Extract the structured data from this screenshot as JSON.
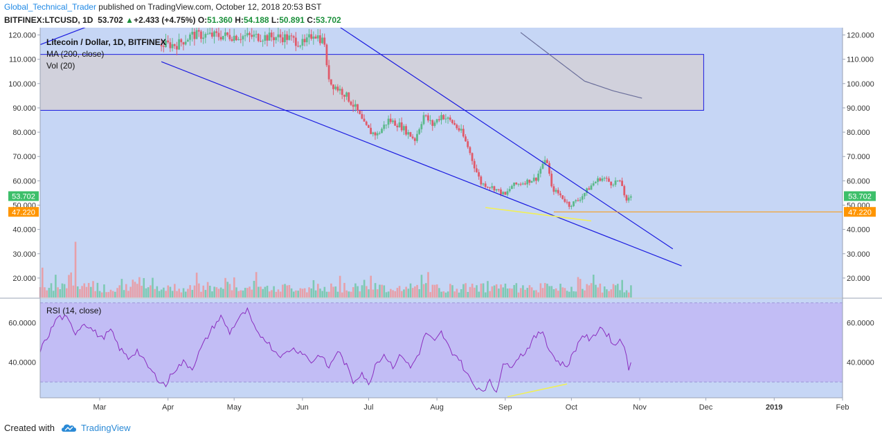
{
  "header": {
    "author": "Global_Technical_Trader",
    "published": " published on TradingView.com, October 12, 2018 20:53 BST",
    "symbol": "BITFINEX:LTCUSD, 1D",
    "last": "53.702",
    "change": "+2.433 (+4.75%)",
    "o_label": "O:",
    "o": "51.360",
    "h_label": "H:",
    "h": "54.188",
    "l_label": "L:",
    "l": "50.891",
    "c_label": "C:",
    "c": "53.702"
  },
  "legend": {
    "title": "Litecoin / Dollar, 1D, BITFINEX",
    "ma": "MA (200, close)",
    "vol": "Vol (20)",
    "rsi": "RSI (14, close)"
  },
  "badges": {
    "price": "53.702",
    "level": "47.220"
  },
  "footer": {
    "created_with": "Created with",
    "brand": "TradingView"
  },
  "colors": {
    "background": "#c6d6f5",
    "zone_fill": "#d1d1dc",
    "up": "#5bb98a",
    "down": "#e05a6a",
    "trendline": "#1a1ae0",
    "ma": "#6a6e9a",
    "level_line": "#ff9500",
    "rsi_line": "#8a2dbf",
    "rsi_band": "#c2bdf5",
    "support_highlight": "#f2f052",
    "price_badge": "#3dbf6a",
    "level_badge": "#ff9500"
  },
  "chart_data": [
    {
      "type": "candlestick",
      "title": "Litecoin / Dollar, 1D, BITFINEX",
      "x_range": [
        "2018-02-02",
        "2019-02-01"
      ],
      "ylim": [
        12,
        123
      ],
      "y_ticks": [
        "20.000",
        "30.000",
        "40.000",
        "50.000",
        "60.000",
        "70.000",
        "80.000",
        "90.000",
        "100.000",
        "110.000",
        "120.000"
      ],
      "y_tick_values": [
        20,
        30,
        40,
        50,
        60,
        70,
        80,
        90,
        100,
        110,
        120
      ],
      "x_ticks": [
        "Mar",
        "Apr",
        "May",
        "Jun",
        "Jul",
        "Aug",
        "Sep",
        "Oct",
        "Nov",
        "Dec",
        "2019",
        "Feb"
      ],
      "x_tick_dates": [
        "2018-03-01",
        "2018-04-01",
        "2018-05-01",
        "2018-06-01",
        "2018-07-01",
        "2018-08-01",
        "2018-09-01",
        "2018-10-01",
        "2018-11-01",
        "2018-12-01",
        "2019-01-01",
        "2019-02-01"
      ],
      "price_anchors": [
        {
          "date": "2018-03-29",
          "price": 116
        },
        {
          "date": "2018-04-05",
          "price": 116
        },
        {
          "date": "2018-04-12",
          "price": 120
        },
        {
          "date": "2018-05-25",
          "price": 119
        },
        {
          "date": "2018-06-02",
          "price": 116
        },
        {
          "date": "2018-06-06",
          "price": 121
        },
        {
          "date": "2018-06-11",
          "price": 117
        },
        {
          "date": "2018-06-12",
          "price": 106
        },
        {
          "date": "2018-06-14",
          "price": 100
        },
        {
          "date": "2018-06-20",
          "price": 96
        },
        {
          "date": "2018-06-25",
          "price": 90
        },
        {
          "date": "2018-06-29",
          "price": 83
        },
        {
          "date": "2018-07-02",
          "price": 80
        },
        {
          "date": "2018-07-05",
          "price": 79
        },
        {
          "date": "2018-07-10",
          "price": 85
        },
        {
          "date": "2018-07-15",
          "price": 83
        },
        {
          "date": "2018-07-22",
          "price": 77
        },
        {
          "date": "2018-07-26",
          "price": 87
        },
        {
          "date": "2018-07-30",
          "price": 83
        },
        {
          "date": "2018-08-03",
          "price": 87
        },
        {
          "date": "2018-08-08",
          "price": 84
        },
        {
          "date": "2018-08-12",
          "price": 80
        },
        {
          "date": "2018-08-15",
          "price": 74
        },
        {
          "date": "2018-08-18",
          "price": 66
        },
        {
          "date": "2018-08-21",
          "price": 59
        },
        {
          "date": "2018-08-27",
          "price": 57
        },
        {
          "date": "2018-09-01",
          "price": 54
        },
        {
          "date": "2018-09-04",
          "price": 58
        },
        {
          "date": "2018-09-08",
          "price": 59
        },
        {
          "date": "2018-09-15",
          "price": 61
        },
        {
          "date": "2018-09-18",
          "price": 67
        },
        {
          "date": "2018-09-20",
          "price": 68
        },
        {
          "date": "2018-09-22",
          "price": 57
        },
        {
          "date": "2018-09-26",
          "price": 54
        },
        {
          "date": "2018-09-30",
          "price": 50
        },
        {
          "date": "2018-10-04",
          "price": 52
        },
        {
          "date": "2018-10-07",
          "price": 55
        },
        {
          "date": "2018-10-11",
          "price": 59
        },
        {
          "date": "2018-10-14",
          "price": 61
        },
        {
          "date": "2018-10-16",
          "price": 61
        },
        {
          "date": "2018-10-19",
          "price": 59
        },
        {
          "date": "2018-10-22",
          "price": 60
        },
        {
          "date": "2018-10-24",
          "price": 58
        },
        {
          "date": "2018-10-26",
          "price": 51
        },
        {
          "date": "2018-10-28",
          "price": 53.7
        }
      ],
      "ma_200": [
        {
          "date": "2018-09-08",
          "price": 121
        },
        {
          "date": "2018-09-21",
          "price": 112
        },
        {
          "date": "2018-10-07",
          "price": 101
        },
        {
          "date": "2018-10-20",
          "price": 97
        },
        {
          "date": "2018-11-02",
          "price": 94
        }
      ],
      "resistance_zone": {
        "from": "2018-02-02",
        "to": "2018-11-30",
        "low": 89,
        "high": 112
      },
      "trendlines": [
        {
          "from": {
            "date": "2018-03-29",
            "price": 109
          },
          "to": {
            "date": "2018-11-20",
            "price": 25
          }
        },
        {
          "from": {
            "date": "2018-06-15",
            "price": 125
          },
          "to": {
            "date": "2018-11-16",
            "price": 32
          }
        },
        {
          "from": {
            "date": "2018-02-02",
            "price": 116
          },
          "to": {
            "date": "2018-02-25",
            "price": 124
          }
        }
      ],
      "support_level": 47.22,
      "support_highlight": {
        "from": {
          "date": "2018-08-23",
          "price": 49
        },
        "to": {
          "date": "2018-10-10",
          "price": 43.5
        }
      },
      "volume_base": 12,
      "volume_peak": 38.5
    },
    {
      "type": "line",
      "title": "RSI (14, close)",
      "ylim": [
        22,
        72
      ],
      "y_ticks": [
        "40.0000",
        "60.0000"
      ],
      "y_tick_values": [
        40,
        60
      ],
      "band": [
        30,
        70
      ],
      "rsi_anchors": [
        {
          "date": "2018-02-02",
          "value": 46
        },
        {
          "date": "2018-02-05",
          "value": 52
        },
        {
          "date": "2018-02-10",
          "value": 63
        },
        {
          "date": "2018-02-14",
          "value": 62
        },
        {
          "date": "2018-02-18",
          "value": 55
        },
        {
          "date": "2018-02-22",
          "value": 60
        },
        {
          "date": "2018-02-26",
          "value": 56
        },
        {
          "date": "2018-03-02",
          "value": 52
        },
        {
          "date": "2018-03-06",
          "value": 56
        },
        {
          "date": "2018-03-10",
          "value": 47
        },
        {
          "date": "2018-03-14",
          "value": 42
        },
        {
          "date": "2018-03-18",
          "value": 46
        },
        {
          "date": "2018-03-22",
          "value": 39
        },
        {
          "date": "2018-03-27",
          "value": 32
        },
        {
          "date": "2018-03-31",
          "value": 28
        },
        {
          "date": "2018-04-03",
          "value": 35
        },
        {
          "date": "2018-04-08",
          "value": 40
        },
        {
          "date": "2018-04-12",
          "value": 37
        },
        {
          "date": "2018-04-16",
          "value": 47
        },
        {
          "date": "2018-04-21",
          "value": 57
        },
        {
          "date": "2018-04-25",
          "value": 63
        },
        {
          "date": "2018-04-29",
          "value": 55
        },
        {
          "date": "2018-05-03",
          "value": 62
        },
        {
          "date": "2018-05-07",
          "value": 66
        },
        {
          "date": "2018-05-11",
          "value": 55
        },
        {
          "date": "2018-05-15",
          "value": 52
        },
        {
          "date": "2018-05-19",
          "value": 46
        },
        {
          "date": "2018-05-23",
          "value": 43
        },
        {
          "date": "2018-05-27",
          "value": 47
        },
        {
          "date": "2018-06-01",
          "value": 45
        },
        {
          "date": "2018-06-05",
          "value": 40
        },
        {
          "date": "2018-06-09",
          "value": 44
        },
        {
          "date": "2018-06-13",
          "value": 37
        },
        {
          "date": "2018-06-17",
          "value": 46
        },
        {
          "date": "2018-06-21",
          "value": 38
        },
        {
          "date": "2018-06-24",
          "value": 30
        },
        {
          "date": "2018-06-28",
          "value": 35
        },
        {
          "date": "2018-07-01",
          "value": 28
        },
        {
          "date": "2018-07-04",
          "value": 39
        },
        {
          "date": "2018-07-08",
          "value": 44
        },
        {
          "date": "2018-07-12",
          "value": 38
        },
        {
          "date": "2018-07-16",
          "value": 44
        },
        {
          "date": "2018-07-20",
          "value": 37
        },
        {
          "date": "2018-07-24",
          "value": 45
        },
        {
          "date": "2018-07-27",
          "value": 55
        },
        {
          "date": "2018-07-31",
          "value": 50
        },
        {
          "date": "2018-08-03",
          "value": 55
        },
        {
          "date": "2018-08-07",
          "value": 46
        },
        {
          "date": "2018-08-11",
          "value": 42
        },
        {
          "date": "2018-08-14",
          "value": 35
        },
        {
          "date": "2018-08-18",
          "value": 28
        },
        {
          "date": "2018-08-22",
          "value": 26
        },
        {
          "date": "2018-08-25",
          "value": 30
        },
        {
          "date": "2018-08-28",
          "value": 25
        },
        {
          "date": "2018-08-31",
          "value": 40
        },
        {
          "date": "2018-09-03",
          "value": 37
        },
        {
          "date": "2018-09-06",
          "value": 42
        },
        {
          "date": "2018-09-10",
          "value": 45
        },
        {
          "date": "2018-09-14",
          "value": 52
        },
        {
          "date": "2018-09-18",
          "value": 56
        },
        {
          "date": "2018-09-21",
          "value": 46
        },
        {
          "date": "2018-09-25",
          "value": 40
        },
        {
          "date": "2018-09-29",
          "value": 38
        },
        {
          "date": "2018-10-03",
          "value": 47
        },
        {
          "date": "2018-10-06",
          "value": 54
        },
        {
          "date": "2018-10-10",
          "value": 51
        },
        {
          "date": "2018-10-14",
          "value": 58
        },
        {
          "date": "2018-10-18",
          "value": 53
        },
        {
          "date": "2018-10-21",
          "value": 48
        },
        {
          "date": "2018-10-23",
          "value": 52
        },
        {
          "date": "2018-10-25",
          "value": 49
        },
        {
          "date": "2018-10-27",
          "value": 35
        },
        {
          "date": "2018-10-28",
          "value": 40.5
        }
      ],
      "highlight": {
        "from": {
          "date": "2018-09-02",
          "value": 22.5
        },
        "to": {
          "date": "2018-09-29",
          "value": 29
        }
      }
    }
  ]
}
